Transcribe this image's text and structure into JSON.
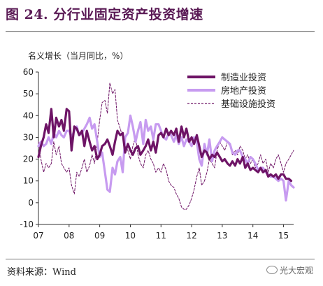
{
  "header": {
    "title": "图 24.  分行业固定资产投资增速"
  },
  "footer": {
    "source": "资料来源：Wind",
    "watermark": "光大宏观"
  },
  "chart_data": {
    "type": "line",
    "ylabel": "名义增长（当月同比，%）",
    "ylim": [
      -10,
      60
    ],
    "yticks": [
      -10,
      0,
      10,
      20,
      30,
      40,
      50,
      60
    ],
    "xticks": [
      "07",
      "08",
      "09",
      "10",
      "11",
      "12",
      "13",
      "14",
      "15"
    ],
    "x_range": [
      2007.0,
      2015.33
    ],
    "legend_position": "top-right",
    "series": [
      {
        "name": "制造业投资",
        "color": "#6e1466",
        "style": "thick",
        "points": [
          [
            2007.0,
            21
          ],
          [
            2007.08,
            26
          ],
          [
            2007.17,
            30
          ],
          [
            2007.25,
            36
          ],
          [
            2007.33,
            32
          ],
          [
            2007.42,
            43
          ],
          [
            2007.5,
            30
          ],
          [
            2007.58,
            39
          ],
          [
            2007.67,
            35
          ],
          [
            2007.75,
            38
          ],
          [
            2007.83,
            33
          ],
          [
            2007.92,
            43
          ],
          [
            2008.0,
            42
          ],
          [
            2008.08,
            24
          ],
          [
            2008.17,
            35
          ],
          [
            2008.25,
            34
          ],
          [
            2008.33,
            31
          ],
          [
            2008.42,
            33
          ],
          [
            2008.5,
            26
          ],
          [
            2008.58,
            33
          ],
          [
            2008.67,
            28
          ],
          [
            2008.75,
            24
          ],
          [
            2008.83,
            26
          ],
          [
            2008.92,
            20
          ],
          [
            2009.0,
            22
          ],
          [
            2009.08,
            26
          ],
          [
            2009.17,
            27
          ],
          [
            2009.25,
            29
          ],
          [
            2009.33,
            26
          ],
          [
            2009.42,
            22
          ],
          [
            2009.5,
            28
          ],
          [
            2009.58,
            33
          ],
          [
            2009.67,
            31
          ],
          [
            2009.75,
            32
          ],
          [
            2009.83,
            23
          ],
          [
            2009.92,
            27
          ],
          [
            2010.0,
            24
          ],
          [
            2010.08,
            22
          ],
          [
            2010.17,
            25
          ],
          [
            2010.25,
            26
          ],
          [
            2010.33,
            22
          ],
          [
            2010.42,
            24
          ],
          [
            2010.5,
            26
          ],
          [
            2010.58,
            29
          ],
          [
            2010.67,
            24
          ],
          [
            2010.75,
            28
          ],
          [
            2010.83,
            23
          ],
          [
            2010.92,
            31
          ],
          [
            2011.0,
            32
          ],
          [
            2011.08,
            30
          ],
          [
            2011.17,
            34
          ],
          [
            2011.25,
            31
          ],
          [
            2011.33,
            33
          ],
          [
            2011.42,
            31
          ],
          [
            2011.5,
            34
          ],
          [
            2011.58,
            28
          ],
          [
            2011.67,
            35
          ],
          [
            2011.75,
            30
          ],
          [
            2011.83,
            34
          ],
          [
            2011.92,
            28
          ],
          [
            2012.0,
            30
          ],
          [
            2012.08,
            27
          ],
          [
            2012.17,
            31
          ],
          [
            2012.25,
            26
          ],
          [
            2012.33,
            21
          ],
          [
            2012.42,
            24
          ],
          [
            2012.5,
            23
          ],
          [
            2012.58,
            20
          ],
          [
            2012.67,
            22
          ],
          [
            2012.75,
            21
          ],
          [
            2012.83,
            23
          ],
          [
            2012.92,
            21
          ],
          [
            2013.0,
            19
          ],
          [
            2013.08,
            20
          ],
          [
            2013.17,
            18
          ],
          [
            2013.25,
            17
          ],
          [
            2013.33,
            19
          ],
          [
            2013.42,
            17
          ],
          [
            2013.5,
            20
          ],
          [
            2013.58,
            18
          ],
          [
            2013.67,
            21
          ],
          [
            2013.75,
            16
          ],
          [
            2013.83,
            18
          ],
          [
            2013.92,
            15
          ],
          [
            2014.0,
            16
          ],
          [
            2014.08,
            15
          ],
          [
            2014.17,
            14
          ],
          [
            2014.25,
            16
          ],
          [
            2014.33,
            14
          ],
          [
            2014.42,
            15
          ],
          [
            2014.5,
            12
          ],
          [
            2014.58,
            13
          ],
          [
            2014.67,
            12
          ],
          [
            2014.75,
            13
          ],
          [
            2014.83,
            11
          ],
          [
            2014.92,
            13
          ],
          [
            2015.0,
            13
          ],
          [
            2015.08,
            11
          ],
          [
            2015.17,
            11
          ],
          [
            2015.25,
            10
          ]
        ]
      },
      {
        "name": "房地产投资",
        "color": "#c79bf0",
        "style": "thick",
        "points": [
          [
            2007.0,
            26
          ],
          [
            2007.08,
            28
          ],
          [
            2007.17,
            26
          ],
          [
            2007.25,
            27
          ],
          [
            2007.33,
            30
          ],
          [
            2007.42,
            27
          ],
          [
            2007.5,
            32
          ],
          [
            2007.58,
            30
          ],
          [
            2007.67,
            33
          ],
          [
            2007.75,
            31
          ],
          [
            2007.83,
            30
          ],
          [
            2007.92,
            33
          ],
          [
            2008.0,
            33
          ],
          [
            2008.08,
            30
          ],
          [
            2008.17,
            33
          ],
          [
            2008.25,
            35
          ],
          [
            2008.33,
            31
          ],
          [
            2008.42,
            32
          ],
          [
            2008.5,
            34
          ],
          [
            2008.58,
            36
          ],
          [
            2008.67,
            39
          ],
          [
            2008.75,
            34
          ],
          [
            2008.83,
            36
          ],
          [
            2008.92,
            28
          ],
          [
            2009.0,
            21
          ],
          [
            2009.08,
            23
          ],
          [
            2009.17,
            14
          ],
          [
            2009.25,
            6
          ],
          [
            2009.33,
            5
          ],
          [
            2009.42,
            16
          ],
          [
            2009.5,
            13
          ],
          [
            2009.58,
            19
          ],
          [
            2009.67,
            21
          ],
          [
            2009.75,
            14
          ],
          [
            2009.83,
            30
          ],
          [
            2009.92,
            32
          ],
          [
            2010.0,
            40
          ],
          [
            2010.08,
            35
          ],
          [
            2010.17,
            28
          ],
          [
            2010.25,
            33
          ],
          [
            2010.33,
            37
          ],
          [
            2010.42,
            27
          ],
          [
            2010.5,
            38
          ],
          [
            2010.58,
            33
          ],
          [
            2010.67,
            35
          ],
          [
            2010.75,
            29
          ],
          [
            2010.83,
            36
          ],
          [
            2010.92,
            36
          ],
          [
            2011.0,
            33
          ],
          [
            2011.08,
            30
          ],
          [
            2011.17,
            29
          ],
          [
            2011.25,
            32
          ],
          [
            2011.33,
            31
          ],
          [
            2011.42,
            28
          ],
          [
            2011.5,
            31
          ],
          [
            2011.58,
            27
          ],
          [
            2011.67,
            30
          ],
          [
            2011.75,
            26
          ],
          [
            2011.83,
            29
          ],
          [
            2011.92,
            28
          ],
          [
            2012.0,
            26
          ],
          [
            2012.08,
            30
          ],
          [
            2012.17,
            28
          ],
          [
            2012.25,
            20
          ],
          [
            2012.33,
            17
          ],
          [
            2012.42,
            27
          ],
          [
            2012.5,
            22
          ],
          [
            2012.58,
            29
          ],
          [
            2012.67,
            19
          ],
          [
            2012.75,
            24
          ],
          [
            2012.83,
            26
          ],
          [
            2012.92,
            28
          ],
          [
            2013.0,
            30
          ],
          [
            2013.08,
            29
          ],
          [
            2013.17,
            28
          ],
          [
            2013.25,
            27
          ],
          [
            2013.33,
            23
          ],
          [
            2013.42,
            22
          ],
          [
            2013.5,
            24
          ],
          [
            2013.58,
            24
          ],
          [
            2013.67,
            21
          ],
          [
            2013.75,
            20
          ],
          [
            2013.83,
            18
          ],
          [
            2013.92,
            21
          ],
          [
            2014.0,
            20
          ],
          [
            2014.08,
            18
          ],
          [
            2014.17,
            15
          ],
          [
            2014.25,
            16
          ],
          [
            2014.33,
            16
          ],
          [
            2014.42,
            14
          ],
          [
            2014.5,
            13
          ],
          [
            2014.58,
            12
          ],
          [
            2014.67,
            12
          ],
          [
            2014.75,
            11
          ],
          [
            2014.83,
            10
          ],
          [
            2014.92,
            11
          ],
          [
            2015.0,
            10
          ],
          [
            2015.08,
            1
          ],
          [
            2015.17,
            10
          ],
          [
            2015.25,
            8
          ],
          [
            2015.33,
            7
          ]
        ]
      },
      {
        "name": "基础设施投资",
        "color": "#6e1466",
        "style": "dashed",
        "points": [
          [
            2007.0,
            28
          ],
          [
            2007.08,
            20
          ],
          [
            2007.17,
            14
          ],
          [
            2007.25,
            18
          ],
          [
            2007.33,
            16
          ],
          [
            2007.42,
            18
          ],
          [
            2007.5,
            28
          ],
          [
            2007.58,
            22
          ],
          [
            2007.67,
            26
          ],
          [
            2007.75,
            18
          ],
          [
            2007.83,
            16
          ],
          [
            2007.92,
            14
          ],
          [
            2008.0,
            16
          ],
          [
            2008.08,
            8
          ],
          [
            2008.17,
            4
          ],
          [
            2008.25,
            14
          ],
          [
            2008.33,
            12
          ],
          [
            2008.42,
            16
          ],
          [
            2008.5,
            20
          ],
          [
            2008.58,
            14
          ],
          [
            2008.67,
            17
          ],
          [
            2008.75,
            22
          ],
          [
            2008.83,
            18
          ],
          [
            2008.92,
            28
          ],
          [
            2009.0,
            38
          ],
          [
            2009.08,
            46
          ],
          [
            2009.17,
            47
          ],
          [
            2009.25,
            41
          ],
          [
            2009.33,
            55
          ],
          [
            2009.42,
            50
          ],
          [
            2009.5,
            52
          ],
          [
            2009.58,
            38
          ],
          [
            2009.67,
            34
          ],
          [
            2009.75,
            30
          ],
          [
            2009.83,
            26
          ],
          [
            2009.92,
            24
          ],
          [
            2010.0,
            20
          ],
          [
            2010.08,
            26
          ],
          [
            2010.17,
            30
          ],
          [
            2010.25,
            22
          ],
          [
            2010.33,
            18
          ],
          [
            2010.42,
            16
          ],
          [
            2010.5,
            22
          ],
          [
            2010.58,
            24
          ],
          [
            2010.67,
            20
          ],
          [
            2010.75,
            18
          ],
          [
            2010.83,
            14
          ],
          [
            2010.92,
            16
          ],
          [
            2011.0,
            14
          ],
          [
            2011.08,
            18
          ],
          [
            2011.17,
            15
          ],
          [
            2011.25,
            10
          ],
          [
            2011.33,
            8
          ],
          [
            2011.42,
            7
          ],
          [
            2011.5,
            4
          ],
          [
            2011.58,
            2
          ],
          [
            2011.67,
            -2
          ],
          [
            2011.75,
            -3
          ],
          [
            2011.83,
            -3
          ],
          [
            2011.92,
            -1
          ],
          [
            2012.0,
            2
          ],
          [
            2012.08,
            6
          ],
          [
            2012.17,
            12
          ],
          [
            2012.25,
            16
          ],
          [
            2012.33,
            8
          ],
          [
            2012.42,
            10
          ],
          [
            2012.5,
            14
          ],
          [
            2012.58,
            20
          ],
          [
            2012.67,
            18
          ],
          [
            2012.75,
            16
          ],
          [
            2012.83,
            24
          ],
          [
            2012.92,
            28
          ],
          [
            2013.0,
            26
          ],
          [
            2013.08,
            24
          ],
          [
            2013.17,
            28
          ],
          [
            2013.25,
            26
          ],
          [
            2013.33,
            22
          ],
          [
            2013.42,
            24
          ],
          [
            2013.5,
            22
          ],
          [
            2013.58,
            26
          ],
          [
            2013.67,
            24
          ],
          [
            2013.75,
            20
          ],
          [
            2013.83,
            22
          ],
          [
            2013.92,
            18
          ],
          [
            2014.0,
            20
          ],
          [
            2014.08,
            16
          ],
          [
            2014.17,
            18
          ],
          [
            2014.25,
            22
          ],
          [
            2014.33,
            18
          ],
          [
            2014.42,
            20
          ],
          [
            2014.5,
            14
          ],
          [
            2014.58,
            18
          ],
          [
            2014.67,
            16
          ],
          [
            2014.75,
            20
          ],
          [
            2014.83,
            22
          ],
          [
            2014.92,
            18
          ],
          [
            2015.0,
            14
          ],
          [
            2015.08,
            18
          ],
          [
            2015.17,
            20
          ],
          [
            2015.25,
            22
          ],
          [
            2015.33,
            24
          ]
        ]
      }
    ]
  }
}
